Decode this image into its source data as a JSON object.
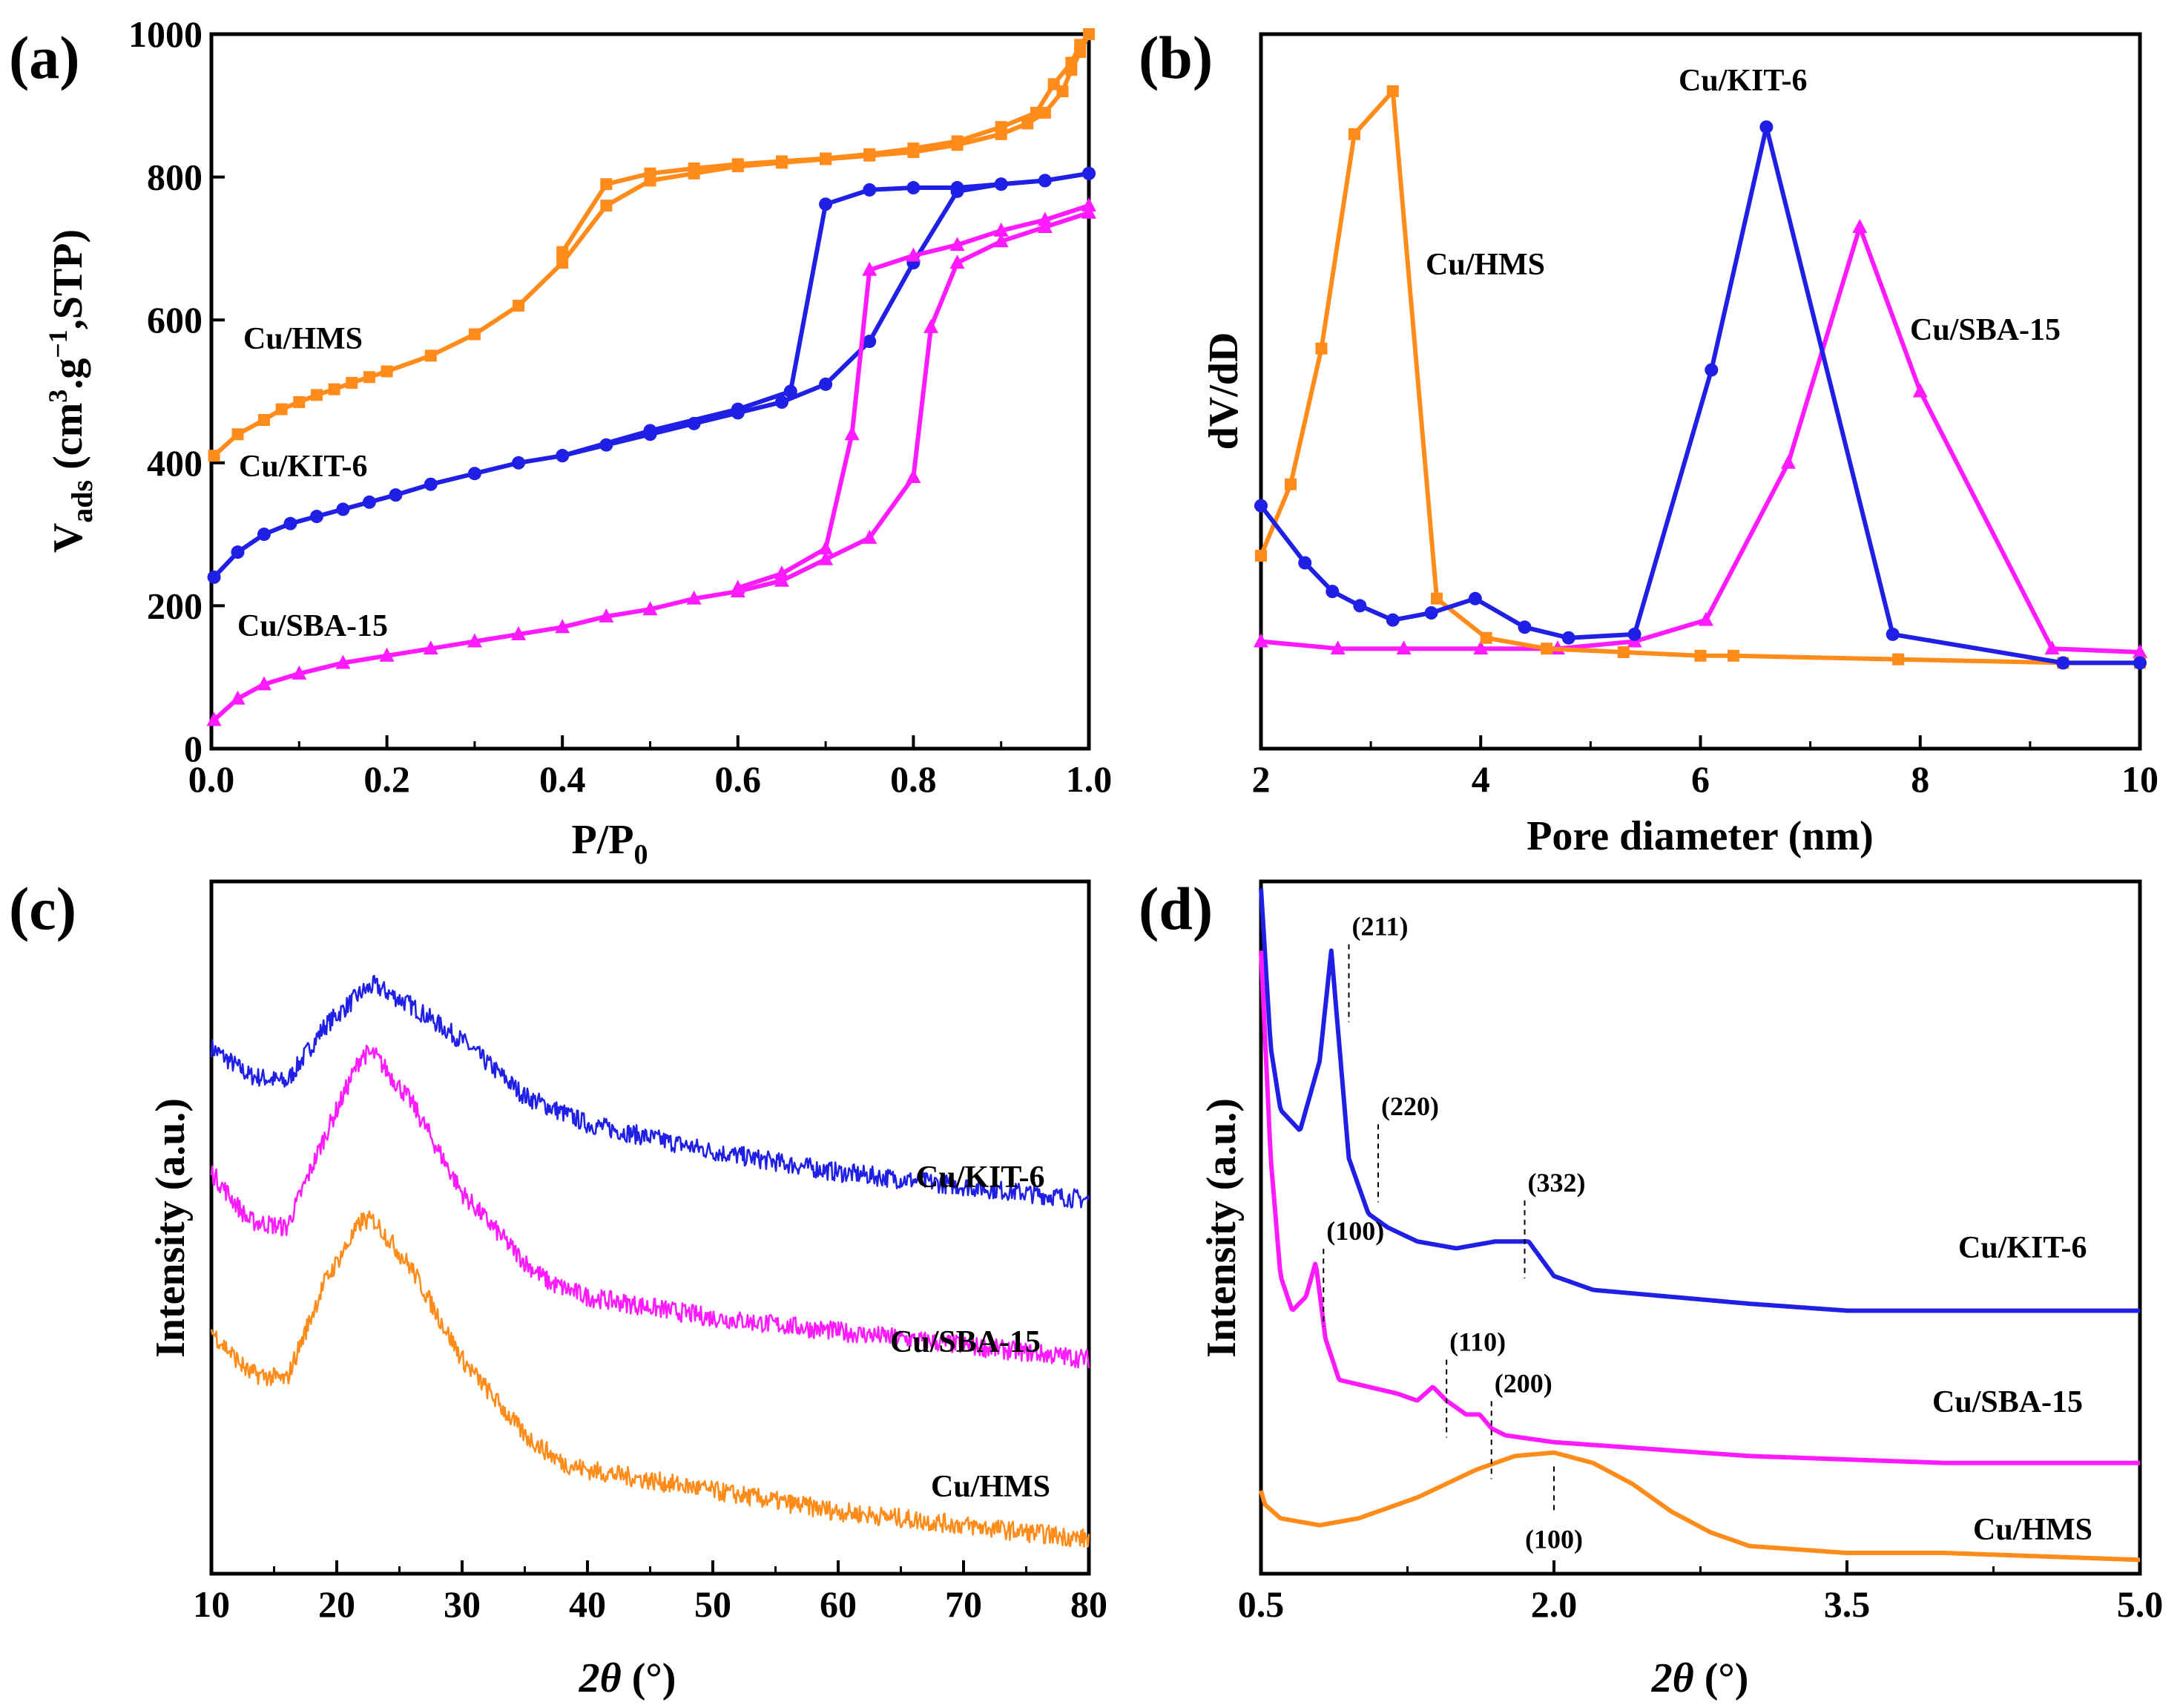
{
  "chart_data": [
    {
      "panel": "(a)",
      "type": "line",
      "xlabel": "P/P",
      "xlabel_sub": "0",
      "ylabel": "V",
      "ylabel_sub": "ads",
      "ylabel_rest": " (cm",
      "ylabel_sup1": "3",
      "ylabel_mid": ".g",
      "ylabel_sup2": "−1",
      "ylabel_end": ",STP)",
      "xlim": [
        0,
        1.0
      ],
      "ylim": [
        0,
        1000
      ],
      "xticks": [
        0,
        0.2,
        0.4,
        0.6,
        0.8,
        1.0
      ],
      "xtick_labels": [
        "0.0",
        "0.2",
        "0.4",
        "0.6",
        "0.8",
        "1.0"
      ],
      "yticks": [
        0,
        200,
        400,
        600,
        800,
        1000
      ],
      "ytick_labels": [
        "0",
        "200",
        "400",
        "600",
        "800",
        "1000"
      ],
      "series": [
        {
          "name": "Cu/HMS",
          "color": "#ff8c1a",
          "marker": "square",
          "x": [
            0.003,
            0.03,
            0.06,
            0.08,
            0.1,
            0.12,
            0.14,
            0.16,
            0.18,
            0.2,
            0.25,
            0.3,
            0.35,
            0.4,
            0.45,
            0.5,
            0.55,
            0.6,
            0.65,
            0.7,
            0.75,
            0.8,
            0.85,
            0.9,
            0.93,
            0.95,
            0.97,
            0.98,
            0.99,
            1.0
          ],
          "y": [
            410,
            440,
            460,
            475,
            485,
            495,
            503,
            512,
            520,
            528,
            550,
            580,
            620,
            680,
            760,
            795,
            805,
            815,
            820,
            825,
            830,
            835,
            845,
            860,
            875,
            890,
            920,
            950,
            975,
            1000
          ],
          "x2": [
            1.0,
            0.99,
            0.98,
            0.96,
            0.94,
            0.9,
            0.85,
            0.8,
            0.75,
            0.7,
            0.65,
            0.6,
            0.55,
            0.5,
            0.45,
            0.4
          ],
          "y2": [
            1000,
            985,
            960,
            930,
            890,
            870,
            850,
            840,
            832,
            826,
            822,
            818,
            812,
            805,
            790,
            695
          ]
        },
        {
          "name": "Cu/KIT-6",
          "color": "#1f1fe6",
          "marker": "circle",
          "x": [
            0.003,
            0.03,
            0.06,
            0.09,
            0.12,
            0.15,
            0.18,
            0.21,
            0.25,
            0.3,
            0.35,
            0.4,
            0.45,
            0.5,
            0.55,
            0.6,
            0.65,
            0.7,
            0.75,
            0.8,
            0.85,
            0.9,
            0.95,
            1.0
          ],
          "y": [
            240,
            275,
            300,
            315,
            325,
            335,
            345,
            355,
            370,
            385,
            400,
            410,
            425,
            440,
            455,
            470,
            485,
            510,
            570,
            680,
            780,
            790,
            795,
            805
          ],
          "x2": [
            1.0,
            0.95,
            0.9,
            0.85,
            0.8,
            0.75,
            0.7,
            0.66,
            0.6,
            0.5,
            0.4
          ],
          "y2": [
            805,
            795,
            790,
            785,
            785,
            782,
            762,
            500,
            475,
            445,
            410
          ]
        },
        {
          "name": "Cu/SBA-15",
          "color": "#ff1aff",
          "marker": "triangle",
          "x": [
            0.003,
            0.03,
            0.06,
            0.1,
            0.15,
            0.2,
            0.25,
            0.3,
            0.35,
            0.4,
            0.45,
            0.5,
            0.55,
            0.6,
            0.65,
            0.7,
            0.75,
            0.8,
            0.82,
            0.85,
            0.9,
            0.95,
            1.0
          ],
          "y": [
            40,
            70,
            90,
            105,
            120,
            130,
            140,
            150,
            160,
            170,
            185,
            195,
            210,
            220,
            235,
            265,
            295,
            380,
            590,
            680,
            710,
            730,
            750
          ],
          "x2": [
            1.0,
            0.95,
            0.9,
            0.85,
            0.8,
            0.75,
            0.73,
            0.7,
            0.65,
            0.6
          ],
          "y2": [
            760,
            740,
            725,
            705,
            690,
            670,
            440,
            280,
            245,
            225
          ]
        }
      ]
    },
    {
      "panel": "(b)",
      "type": "line",
      "xlabel": "Pore diameter (nm)",
      "ylabel": "dV/dD",
      "xlim": [
        2,
        10
      ],
      "ylim": [
        0,
        1
      ],
      "xticks": [
        2,
        4,
        6,
        8,
        10
      ],
      "xtick_labels": [
        "2",
        "4",
        "6",
        "8",
        "10"
      ],
      "series": [
        {
          "name": "Cu/HMS",
          "color": "#ff8c1a",
          "marker": "square",
          "x": [
            2.0,
            2.27,
            2.55,
            2.85,
            3.2,
            3.6,
            4.05,
            4.6,
            5.3,
            6.0,
            6.3,
            7.8,
            9.3,
            10.0
          ],
          "y": [
            0.27,
            0.37,
            0.56,
            0.86,
            0.92,
            0.21,
            0.155,
            0.14,
            0.135,
            0.13,
            0.13,
            0.125,
            0.12,
            0.12
          ]
        },
        {
          "name": "Cu/KIT-6",
          "color": "#1f1fe6",
          "marker": "circle",
          "x": [
            2.0,
            2.4,
            2.65,
            2.9,
            3.2,
            3.55,
            3.95,
            4.4,
            4.8,
            5.4,
            6.1,
            6.6,
            7.75,
            9.3,
            10.0
          ],
          "y": [
            0.34,
            0.26,
            0.22,
            0.2,
            0.18,
            0.19,
            0.21,
            0.17,
            0.155,
            0.16,
            0.53,
            0.87,
            0.16,
            0.12,
            0.12
          ]
        },
        {
          "name": "Cu/SBA-15",
          "color": "#ff1aff",
          "marker": "triangle",
          "x": [
            2.0,
            2.7,
            3.3,
            4.0,
            4.7,
            5.4,
            6.05,
            6.8,
            7.45,
            8.0,
            9.2,
            10.0
          ],
          "y": [
            0.15,
            0.14,
            0.14,
            0.14,
            0.14,
            0.15,
            0.18,
            0.4,
            0.73,
            0.5,
            0.14,
            0.135
          ]
        }
      ]
    },
    {
      "panel": "(c)",
      "type": "line",
      "xlabel_theta": "2θ",
      "xlabel_unit": " (°)",
      "ylabel": "Intensity (a.u.)",
      "xlim": [
        10,
        80
      ],
      "xticks": [
        10,
        20,
        30,
        40,
        50,
        60,
        70,
        80
      ],
      "xtick_labels": [
        "10",
        "20",
        "30",
        "40",
        "50",
        "60",
        "70",
        "80"
      ],
      "series": [
        {
          "name": "Cu/KIT-6",
          "color": "#1f1fe6",
          "x": [
            10,
            13,
            16,
            19,
            22,
            23,
            26,
            30,
            35,
            40,
            50,
            60,
            70,
            80
          ],
          "y": [
            0.76,
            0.72,
            0.71,
            0.79,
            0.84,
            0.85,
            0.82,
            0.77,
            0.69,
            0.65,
            0.61,
            0.58,
            0.56,
            0.54
          ]
        },
        {
          "name": "Cu/SBA-15",
          "color": "#ff1aff",
          "x": [
            10,
            13,
            16,
            19,
            22,
            23,
            26,
            30,
            35,
            37,
            40,
            50,
            60,
            70,
            80
          ],
          "y": [
            0.58,
            0.51,
            0.5,
            0.63,
            0.75,
            0.75,
            0.68,
            0.55,
            0.45,
            0.42,
            0.4,
            0.37,
            0.35,
            0.33,
            0.31
          ]
        },
        {
          "name": "Cu/HMS",
          "color": "#ff8c1a",
          "x": [
            10,
            13,
            16,
            19,
            22,
            23,
            26,
            30,
            35,
            38,
            40,
            50,
            60,
            70,
            80
          ],
          "y": [
            0.35,
            0.29,
            0.28,
            0.42,
            0.51,
            0.51,
            0.44,
            0.31,
            0.2,
            0.16,
            0.15,
            0.12,
            0.09,
            0.07,
            0.05
          ]
        }
      ]
    },
    {
      "panel": "(d)",
      "type": "line",
      "xlabel_theta": "2θ",
      "xlabel_unit": " (°)",
      "ylabel": "Intensity (a.u.)",
      "xlim": [
        0.5,
        5.0
      ],
      "xticks": [
        0.5,
        2.0,
        3.5,
        5.0
      ],
      "xtick_labels": [
        "0.5",
        "2.0",
        "3.5",
        "5.0"
      ],
      "series": [
        {
          "name": "Cu/KIT-6",
          "color": "#1f1fe6",
          "x": [
            0.5,
            0.55,
            0.6,
            0.7,
            0.8,
            0.86,
            0.92,
            0.95,
            1.0,
            1.05,
            1.15,
            1.3,
            1.5,
            1.7,
            1.87,
            2.0,
            2.2,
            2.6,
            3.0,
            3.5,
            4.0,
            5.0
          ],
          "y": [
            0.99,
            0.76,
            0.67,
            0.64,
            0.74,
            0.9,
            0.7,
            0.6,
            0.56,
            0.52,
            0.5,
            0.48,
            0.47,
            0.48,
            0.48,
            0.43,
            0.41,
            0.4,
            0.39,
            0.38,
            0.38,
            0.38
          ]
        },
        {
          "name": "Cu/SBA-15",
          "color": "#ff1aff",
          "x": [
            0.5,
            0.55,
            0.6,
            0.66,
            0.73,
            0.78,
            0.83,
            0.9,
            1.05,
            1.2,
            1.3,
            1.38,
            1.45,
            1.55,
            1.62,
            1.68,
            1.75,
            2.0,
            2.5,
            3.0,
            4.0,
            5.0
          ],
          "y": [
            0.9,
            0.6,
            0.43,
            0.38,
            0.4,
            0.45,
            0.34,
            0.28,
            0.27,
            0.26,
            0.25,
            0.27,
            0.25,
            0.23,
            0.23,
            0.21,
            0.2,
            0.19,
            0.18,
            0.17,
            0.16,
            0.16
          ]
        },
        {
          "name": "Cu/HMS",
          "color": "#ff8c1a",
          "x": [
            0.5,
            0.52,
            0.6,
            0.8,
            1.0,
            1.3,
            1.6,
            1.8,
            2.0,
            2.2,
            2.4,
            2.6,
            2.8,
            3.0,
            3.5,
            4.0,
            5.0
          ],
          "y": [
            0.12,
            0.1,
            0.08,
            0.07,
            0.08,
            0.11,
            0.15,
            0.17,
            0.175,
            0.16,
            0.13,
            0.09,
            0.06,
            0.04,
            0.03,
            0.03,
            0.02
          ]
        }
      ],
      "annotations": [
        {
          "text": "(211)",
          "x": 0.95,
          "y": 0.92
        },
        {
          "text": "(220)",
          "x": 1.1,
          "y": 0.66
        },
        {
          "text": "(332)",
          "x": 1.85,
          "y": 0.55
        },
        {
          "text": "(100)",
          "x": 0.82,
          "y": 0.48
        },
        {
          "text": "(110)",
          "x": 1.45,
          "y": 0.32
        },
        {
          "text": "(200)",
          "x": 1.68,
          "y": 0.26
        },
        {
          "text": "(100)",
          "x": 2.0,
          "y": 0.08
        }
      ]
    }
  ]
}
